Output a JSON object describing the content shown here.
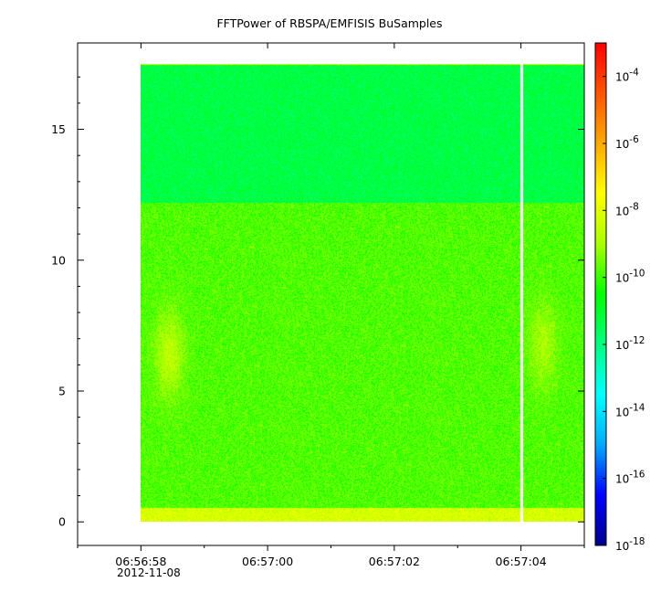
{
  "chart_data": {
    "type": "heatmap",
    "title": "FFTPower of RBSPA/EMFISIS  BuSamples",
    "xlabel": "",
    "ylabel": "",
    "x_tick_labels": [
      "06:56:58",
      "06:57:00",
      "06:57:02",
      "06:57:04"
    ],
    "x_date_label": "2012-11-08",
    "x_tick_values_s": [
      0,
      2,
      4,
      6
    ],
    "xlim_s": [
      -1,
      7
    ],
    "y_tick_labels": [
      "0",
      "5",
      "10",
      "15"
    ],
    "y_tick_values": [
      0,
      5,
      10,
      15
    ],
    "ylim": [
      -0.9,
      18.3
    ],
    "data_extent": {
      "x_s": [
        0,
        7
      ],
      "y": [
        0,
        17.5
      ]
    },
    "gap_at_s": 6.0,
    "colorbar": {
      "scale": "log",
      "range": [
        1e-18,
        0.001
      ],
      "tick_values": [
        1e-18,
        1e-16,
        1e-14,
        1e-12,
        1e-10,
        1e-08,
        1e-06,
        0.0001
      ],
      "tick_labels": [
        {
          "base": "10",
          "exp": "-18"
        },
        {
          "base": "10",
          "exp": "-16"
        },
        {
          "base": "10",
          "exp": "-14"
        },
        {
          "base": "10",
          "exp": "-12"
        },
        {
          "base": "10",
          "exp": "-10"
        },
        {
          "base": "10",
          "exp": "-8"
        },
        {
          "base": "10",
          "exp": "-6"
        },
        {
          "base": "10",
          "exp": "-4"
        }
      ],
      "colors": [
        "#00008b",
        "#0000ff",
        "#00aaff",
        "#00ffff",
        "#00ff80",
        "#00ff00",
        "#aaff00",
        "#ffff00",
        "#ffaa00",
        "#ff5500",
        "#ff0000"
      ]
    },
    "bands": [
      {
        "y": [
          0,
          0.55
        ],
        "log_power": -8.2
      },
      {
        "y": [
          0.55,
          12.2
        ],
        "log_power": -9.8
      },
      {
        "y": [
          12.2,
          17.5
        ],
        "log_power": -11.3
      }
    ],
    "features": [
      {
        "x_s": 0.45,
        "y": 6.4,
        "log_power": -8.6
      },
      {
        "x_s": 6.35,
        "y": 6.8,
        "log_power": -8.9
      }
    ],
    "grid": false,
    "legend": "colorbar-right"
  }
}
